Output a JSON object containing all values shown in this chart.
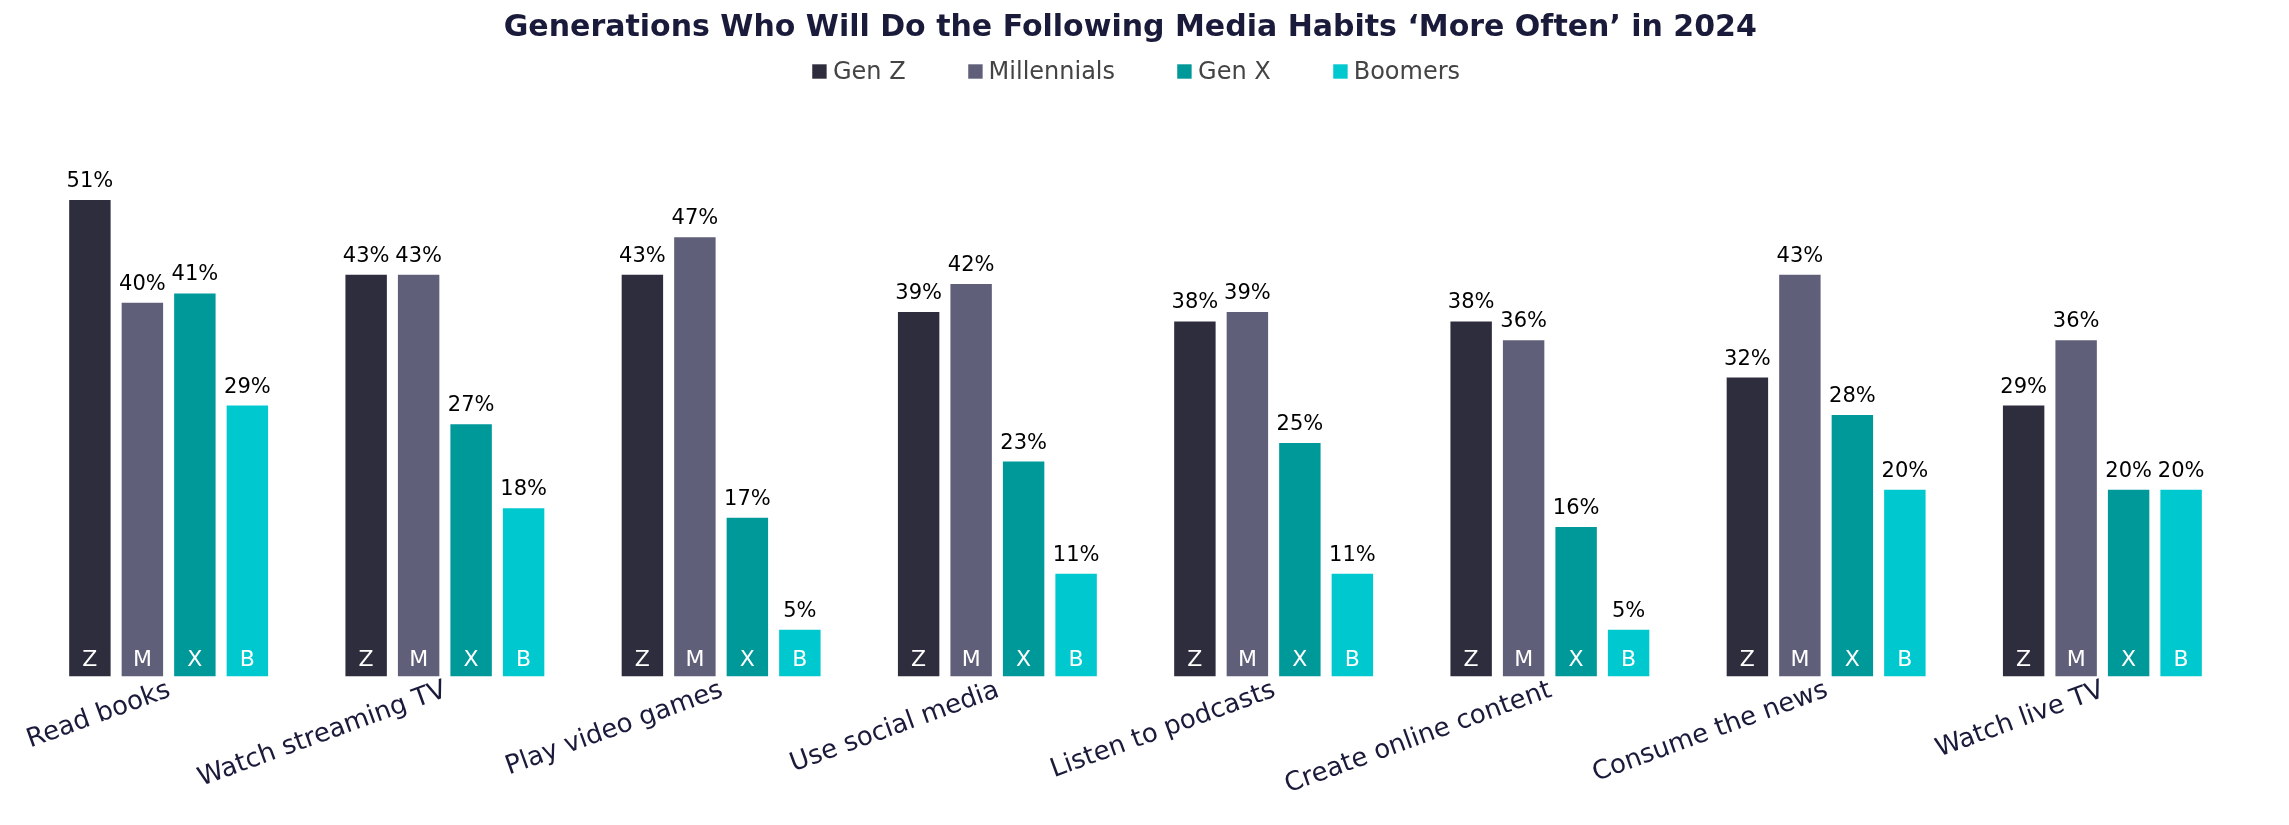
{
  "chart_data": {
    "type": "bar",
    "title": "Generations Who Will Do the Following Media Habits ‘More Often’  in 2024",
    "categories": [
      "Read books",
      "Watch streaming TV",
      "Play video games",
      "Use social media",
      "Listen to podcasts",
      "Create online content",
      "Consume the news",
      "Watch live TV"
    ],
    "series": [
      {
        "name": "Gen Z",
        "color": "#2e2d3d",
        "values": [
          51,
          43,
          43,
          39,
          38,
          38,
          32,
          29
        ],
        "value_labels": [
          "51%",
          "43%",
          "43%",
          "39%",
          "38%",
          "38%",
          "32%",
          "29%"
        ]
      },
      {
        "name": "Millennials",
        "color": "#5f5f7a",
        "values": [
          40,
          43,
          47,
          42,
          39,
          36,
          43,
          36
        ],
        "value_labels": [
          "40%",
          "43%",
          "47%",
          "42%",
          "39%",
          "36%",
          "43%",
          "36%"
        ]
      },
      {
        "name": "Gen X",
        "color": "#00999a",
        "values": [
          41,
          27,
          17,
          23,
          25,
          16,
          28,
          20
        ],
        "value_labels": [
          "41%",
          "27%",
          "17%",
          "23%",
          "25%",
          "16%",
          "28%",
          "20%"
        ]
      },
      {
        "name": "Boomers",
        "color": "#00c8cf",
        "values": [
          29,
          18,
          5,
          11,
          11,
          5,
          20,
          20
        ],
        "value_labels": [
          "29%",
          "18%",
          "5%",
          "11%",
          "11%",
          "5%",
          "20%",
          "20%"
        ]
      }
    ],
    "annotations": [
      "Z",
      "M",
      "X",
      "B"
    ],
    "legend": "top",
    "grid": false
  }
}
